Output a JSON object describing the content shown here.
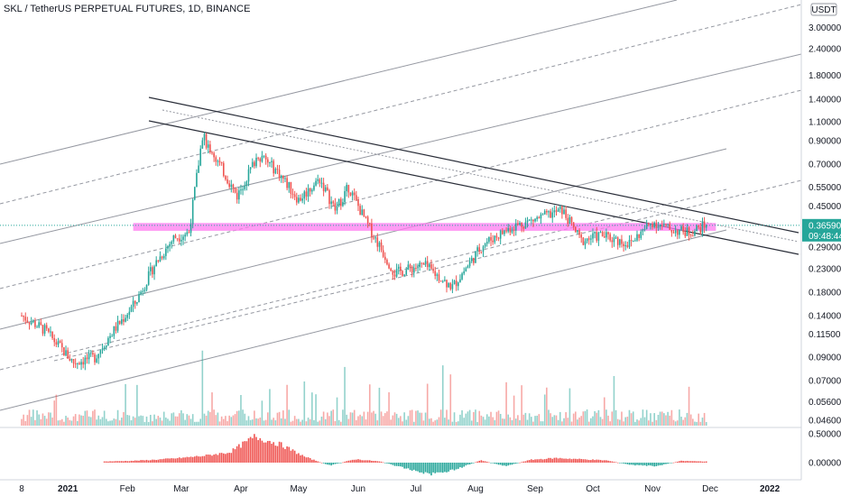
{
  "header": {
    "title": "SKL / TetherUS PERPETUAL FUTURES, 1D, BINANCE"
  },
  "colors": {
    "up": "#26a69a",
    "down": "#ef5350",
    "zone": "#ff7bf0",
    "price_tag": "#26a69a",
    "line_dark": "#2a2e39",
    "line_gray": "#9598a1"
  },
  "chart_data": [
    {
      "type": "candlestick",
      "title": "SKL / TetherUS PERPETUAL FUTURES, 1D, BINANCE",
      "scale": "log",
      "currency": "USDT",
      "y_ticks": [
        "3.00000",
        "2.40000",
        "1.80000",
        "1.40000",
        "1.10000",
        "0.90000",
        "0.70000",
        "0.55000",
        "0.45000",
        "0.29000",
        "0.23000",
        "0.18000",
        "0.14000",
        "0.11500",
        "0.09000",
        "0.07000",
        "0.05600",
        "0.04600"
      ],
      "x_ticks": [
        "8",
        "2021",
        "Feb",
        "Mar",
        "Apr",
        "May",
        "Jun",
        "Jul",
        "Aug",
        "Sep",
        "Oct",
        "Nov",
        "Dec",
        "2022"
      ],
      "last_price": "0.36590",
      "countdown": "09:48:44",
      "resistance_zone": [
        0.345,
        0.375
      ],
      "price_path": {
        "dates": [
          "2020-12-08",
          "2020-12-20",
          "2021-01-04",
          "2021-01-15",
          "2021-01-25",
          "2021-02-05",
          "2021-02-15",
          "2021-02-25",
          "2021-03-05",
          "2021-03-12",
          "2021-03-20",
          "2021-03-30",
          "2021-04-10",
          "2021-04-20",
          "2021-05-01",
          "2021-05-12",
          "2021-05-20",
          "2021-05-27",
          "2021-06-05",
          "2021-06-20",
          "2021-07-05",
          "2021-07-20",
          "2021-08-05",
          "2021-08-20",
          "2021-09-05",
          "2021-09-15",
          "2021-09-25",
          "2021-10-05",
          "2021-10-20",
          "2021-11-01",
          "2021-11-10",
          "2021-11-20",
          "2021-11-29"
        ],
        "close": [
          0.14,
          0.12,
          0.085,
          0.09,
          0.12,
          0.16,
          0.24,
          0.32,
          0.34,
          0.95,
          0.72,
          0.5,
          0.78,
          0.65,
          0.48,
          0.6,
          0.43,
          0.55,
          0.38,
          0.22,
          0.24,
          0.19,
          0.3,
          0.36,
          0.4,
          0.43,
          0.31,
          0.33,
          0.3,
          0.38,
          0.35,
          0.34,
          0.3659
        ]
      },
      "volume_spike_dates": [
        "2021-03-12",
        "2021-05-25",
        "2021-07-15",
        "2021-10-12"
      ]
    },
    {
      "type": "bar",
      "title": "",
      "y_ticks": [
        "0.50000",
        "0.00000"
      ],
      "description": "histogram oscillator below price chart",
      "values": [
        0.02,
        0.03,
        0.05,
        0.08,
        0.12,
        0.18,
        0.45,
        0.32,
        0.1,
        -0.05,
        0.06,
        0.02,
        -0.1,
        -0.2,
        -0.12,
        0.04,
        -0.06,
        0.05,
        0.08,
        0.06,
        0.04,
        -0.04,
        -0.06,
        0.03,
        0.02
      ]
    }
  ]
}
